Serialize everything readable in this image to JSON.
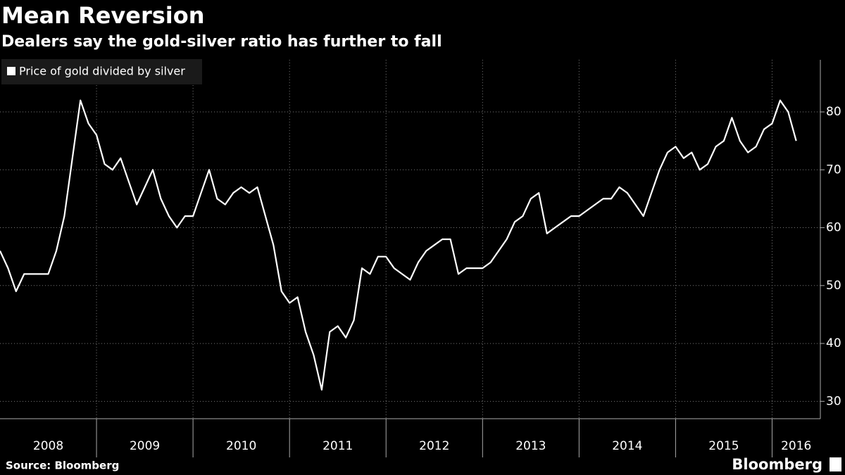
{
  "chart_data": {
    "type": "line",
    "title": "Mean Reversion",
    "subtitle": "Dealers say the gold-silver ratio has further to fall",
    "source": "Source: Bloomberg",
    "logo": "Bloomberg",
    "x": [
      "2008-01",
      "2008-02",
      "2008-03",
      "2008-04",
      "2008-05",
      "2008-06",
      "2008-07",
      "2008-08",
      "2008-09",
      "2008-10",
      "2008-11",
      "2008-12",
      "2009-01",
      "2009-02",
      "2009-03",
      "2009-04",
      "2009-05",
      "2009-06",
      "2009-07",
      "2009-08",
      "2009-09",
      "2009-10",
      "2009-11",
      "2009-12",
      "2010-01",
      "2010-02",
      "2010-03",
      "2010-04",
      "2010-05",
      "2010-06",
      "2010-07",
      "2010-08",
      "2010-09",
      "2010-10",
      "2010-11",
      "2010-12",
      "2011-01",
      "2011-02",
      "2011-03",
      "2011-04",
      "2011-05",
      "2011-06",
      "2011-07",
      "2011-08",
      "2011-09",
      "2011-10",
      "2011-11",
      "2011-12",
      "2012-01",
      "2012-02",
      "2012-03",
      "2012-04",
      "2012-05",
      "2012-06",
      "2012-07",
      "2012-08",
      "2012-09",
      "2012-10",
      "2012-11",
      "2012-12",
      "2013-01",
      "2013-02",
      "2013-03",
      "2013-04",
      "2013-05",
      "2013-06",
      "2013-07",
      "2013-08",
      "2013-09",
      "2013-10",
      "2013-11",
      "2013-12",
      "2014-01",
      "2014-02",
      "2014-03",
      "2014-04",
      "2014-05",
      "2014-06",
      "2014-07",
      "2014-08",
      "2014-09",
      "2014-10",
      "2014-11",
      "2014-12",
      "2015-01",
      "2015-02",
      "2015-03",
      "2015-04",
      "2015-05",
      "2015-06",
      "2015-07",
      "2015-08",
      "2015-09",
      "2015-10",
      "2015-11",
      "2015-12",
      "2016-01",
      "2016-02",
      "2016-03",
      "2016-04"
    ],
    "series": [
      {
        "name": "Price of gold divided by silver",
        "color": "#ffffff",
        "values": [
          56,
          53,
          49,
          52,
          52,
          52,
          52,
          56,
          62,
          72,
          82,
          78,
          76,
          71,
          70,
          72,
          68,
          64,
          67,
          70,
          65,
          62,
          60,
          62,
          62,
          66,
          70,
          65,
          64,
          66,
          67,
          66,
          67,
          62,
          57,
          49,
          47,
          48,
          42,
          38,
          32,
          42,
          43,
          41,
          44,
          53,
          52,
          55,
          55,
          53,
          52,
          51,
          54,
          56,
          57,
          58,
          58,
          52,
          53,
          53,
          53,
          54,
          56,
          58,
          61,
          62,
          65,
          66,
          59,
          60,
          61,
          62,
          62,
          63,
          64,
          65,
          65,
          67,
          66,
          64,
          62,
          66,
          70,
          73,
          74,
          72,
          73,
          70,
          71,
          74,
          75,
          79,
          75,
          73,
          74,
          77,
          78,
          82,
          80,
          75
        ]
      }
    ],
    "xlim": [
      "2008-01",
      "2016-07"
    ],
    "xticks": [
      {
        "value": "2008-01",
        "label": "2008"
      },
      {
        "value": "2009-01",
        "label": "2009"
      },
      {
        "value": "2010-01",
        "label": "2010"
      },
      {
        "value": "2011-01",
        "label": "2011"
      },
      {
        "value": "2012-01",
        "label": "2012"
      },
      {
        "value": "2013-01",
        "label": "2013"
      },
      {
        "value": "2014-01",
        "label": "2014"
      },
      {
        "value": "2015-01",
        "label": "2015"
      },
      {
        "value": "2016-01",
        "label": "2016"
      }
    ],
    "ylim": [
      27,
      89
    ],
    "yticks": [
      30,
      40,
      50,
      60,
      70,
      80
    ],
    "grid": true,
    "legend": "top-left"
  }
}
